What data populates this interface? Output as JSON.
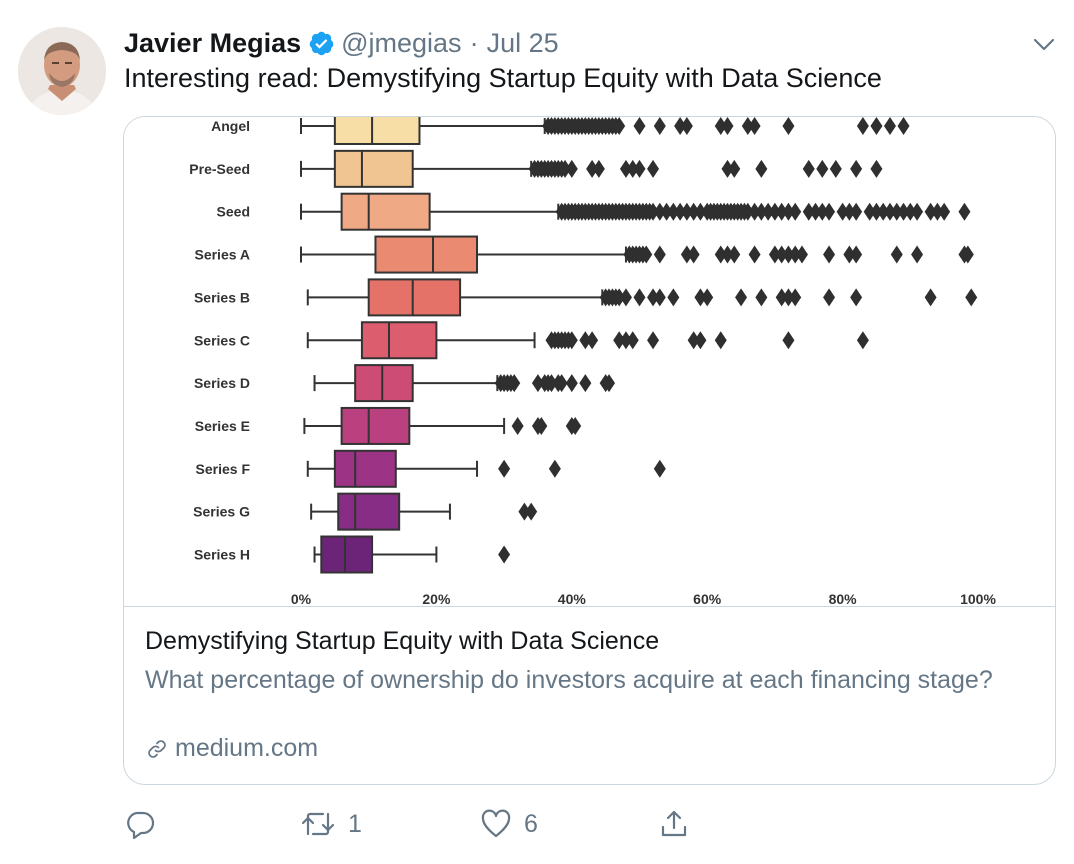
{
  "author": {
    "name": "Javier Megias",
    "handle": "@jmegias",
    "separator": "·",
    "date": "Jul 25",
    "verified": true
  },
  "tweet_text": "Interesting read: Demystifying Startup Equity with Data Science",
  "card": {
    "title": "Demystifying Startup Equity with Data Science",
    "description": "What percentage of ownership do investors acquire at each financing stage?",
    "link_text": "medium.com"
  },
  "actions": {
    "reply_count": "",
    "retweet_count": "1",
    "like_count": "6"
  },
  "icons": {
    "verified": "verified-badge-icon",
    "chevron": "chevron-down-icon",
    "reply": "reply-icon",
    "retweet": "retweet-icon",
    "like": "heart-icon",
    "share": "share-icon",
    "link": "link-icon"
  },
  "colors": {
    "verified_blue": "#1da1f2",
    "muted_text": "#657786",
    "border": "#ccd6dd"
  },
  "chart_data": {
    "type": "boxplot",
    "orientation": "horizontal",
    "xlim": [
      0,
      100
    ],
    "x_ticks": [
      "0%",
      "20%",
      "40%",
      "60%",
      "80%",
      "100%"
    ],
    "categories": [
      "Angel",
      "Pre-Seed",
      "Seed",
      "Series A",
      "Series B",
      "Series C",
      "Series D",
      "Series E",
      "Series F",
      "Series G",
      "Series H"
    ],
    "series": [
      {
        "name": "Angel",
        "color": "#f6dea6",
        "whisker_low": 0,
        "q1": 5,
        "median": 10.5,
        "q3": 17.5,
        "whisker_high": 36,
        "outliers": [
          36.5,
          37,
          37.5,
          38,
          38.5,
          39,
          39.5,
          40,
          40.5,
          41,
          41.5,
          42,
          42.5,
          43,
          43.5,
          44,
          44.5,
          45,
          45.5,
          46,
          46.5,
          47,
          50,
          53,
          56,
          57,
          62,
          63,
          66,
          67,
          72,
          83,
          85,
          87,
          89
        ]
      },
      {
        "name": "Pre-Seed",
        "color": "#f1c592",
        "whisker_low": 0,
        "q1": 5,
        "median": 9,
        "q3": 16.5,
        "whisker_high": 34,
        "outliers": [
          34.5,
          35,
          35.5,
          36,
          36.5,
          37,
          37.5,
          38,
          38.5,
          39,
          40,
          43,
          44,
          48,
          49,
          50,
          52,
          63,
          64,
          68,
          75,
          77,
          79,
          82,
          85
        ]
      },
      {
        "name": "Seed",
        "color": "#efa985",
        "whisker_low": 0,
        "q1": 6,
        "median": 10,
        "q3": 19,
        "whisker_high": 38,
        "outliers": [
          38.5,
          39,
          39.5,
          40,
          40.5,
          41,
          41.5,
          42,
          42.5,
          43,
          43.5,
          44,
          44.5,
          45,
          45.5,
          46,
          46.5,
          47,
          47.5,
          48,
          48.5,
          49,
          49.5,
          50,
          50.5,
          51,
          51.5,
          52,
          53,
          54,
          55,
          56,
          57,
          58,
          59,
          60,
          60.5,
          61,
          61.5,
          62,
          62.5,
          63,
          63.5,
          64,
          64.5,
          65,
          65.5,
          66,
          67,
          68,
          69,
          70,
          71,
          72,
          73,
          75,
          76,
          77,
          78,
          80,
          81,
          82,
          84,
          85,
          86,
          87,
          88,
          89,
          90,
          91,
          93,
          94,
          95,
          98
        ]
      },
      {
        "name": "Series A",
        "color": "#ea8a71",
        "whisker_low": 0,
        "q1": 11,
        "median": 19.5,
        "q3": 26,
        "whisker_high": 48,
        "outliers": [
          48.5,
          49,
          49.5,
          50,
          50.5,
          51,
          53,
          57,
          58,
          62,
          63,
          64,
          67,
          70,
          71,
          72,
          73,
          74,
          78,
          81,
          82,
          88,
          91,
          98,
          98.5
        ]
      },
      {
        "name": "Series B",
        "color": "#e47269",
        "whisker_low": 1,
        "q1": 10,
        "median": 16.5,
        "q3": 23.5,
        "whisker_high": 44.5,
        "outliers": [
          45,
          45.5,
          46,
          46.5,
          47,
          48,
          50,
          52,
          53,
          55,
          59,
          60,
          65,
          68,
          71,
          72,
          73,
          78,
          82,
          93,
          99
        ]
      },
      {
        "name": "Series C",
        "color": "#dc5d6d",
        "whisker_low": 1,
        "q1": 9,
        "median": 13,
        "q3": 20,
        "whisker_high": 34.5,
        "outliers": [
          37,
          37.5,
          38,
          38.5,
          39,
          39.5,
          40,
          42,
          43,
          47,
          48,
          49,
          52,
          58,
          59,
          62,
          72,
          83
        ]
      },
      {
        "name": "Series D",
        "color": "#cd4c75",
        "whisker_low": 2,
        "q1": 8,
        "median": 12,
        "q3": 16.5,
        "whisker_high": 29,
        "outliers": [
          29.5,
          30,
          30.5,
          31,
          31.5,
          35,
          36,
          36.5,
          37,
          38,
          38.5,
          40,
          42,
          45,
          45.5
        ]
      },
      {
        "name": "Series E",
        "color": "#ba4080",
        "whisker_low": 0.5,
        "q1": 6,
        "median": 10,
        "q3": 16,
        "whisker_high": 30,
        "outliers": [
          32,
          35,
          35.5,
          40,
          40.5
        ]
      },
      {
        "name": "Series F",
        "color": "#9c3384",
        "whisker_low": 1,
        "q1": 5,
        "median": 8,
        "q3": 14,
        "whisker_high": 26,
        "outliers": [
          30,
          37.5,
          53
        ]
      },
      {
        "name": "Series G",
        "color": "#872d86",
        "whisker_low": 1.5,
        "q1": 5.5,
        "median": 8,
        "q3": 14.5,
        "whisker_high": 22,
        "outliers": [
          33,
          34
        ]
      },
      {
        "name": "Series H",
        "color": "#6c2478",
        "whisker_low": 2,
        "q1": 3,
        "median": 6.5,
        "q3": 10.5,
        "whisker_high": 20,
        "outliers": [
          30
        ]
      }
    ]
  }
}
